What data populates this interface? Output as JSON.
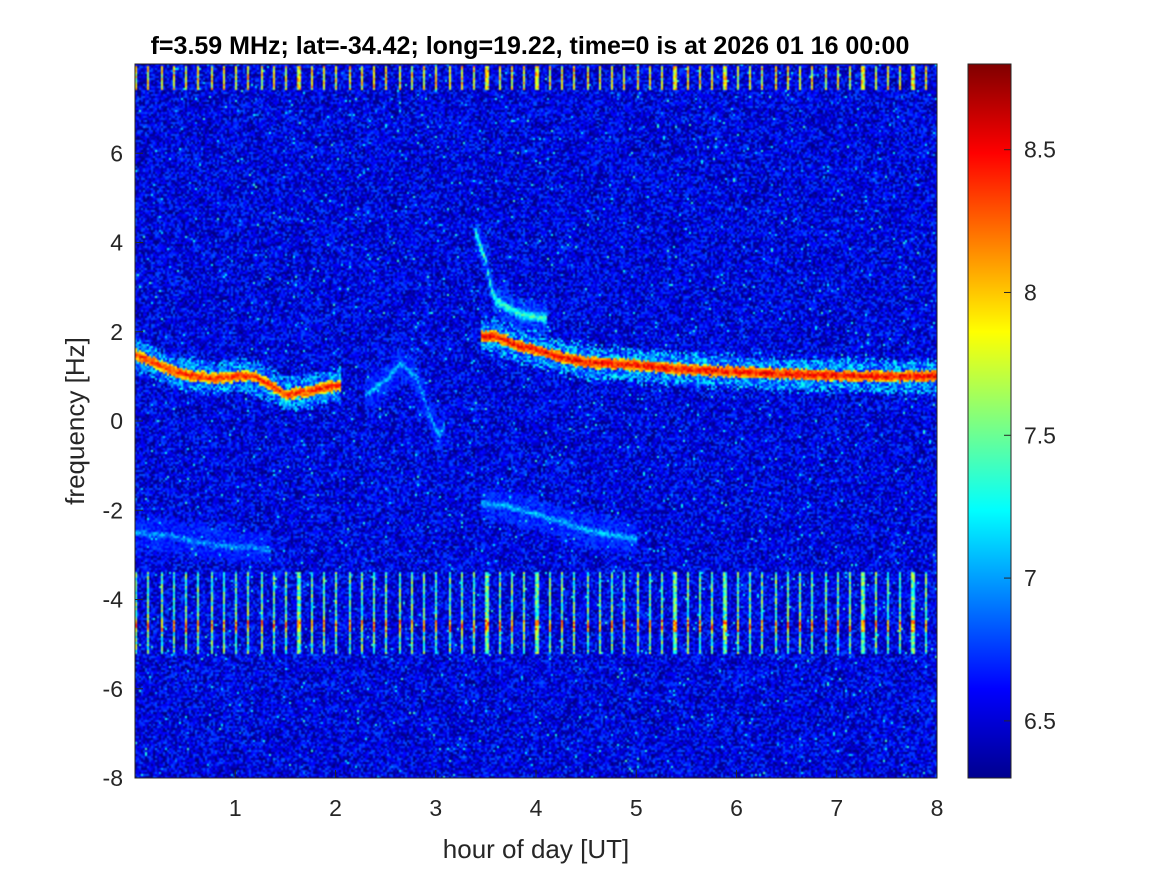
{
  "chart_data": {
    "type": "heatmap",
    "title": "f=3.59 MHz;  lat=-34.42; long=19.22, time=0 is at 2026 01 16 00:00",
    "xlabel": "hour of day [UT]",
    "ylabel": "frequency [Hz]",
    "xlim": [
      0,
      8
    ],
    "ylim": [
      -8,
      8
    ],
    "xticks": [
      1,
      2,
      3,
      4,
      5,
      6,
      7,
      8
    ],
    "yticks": [
      -8,
      -6,
      -4,
      -2,
      0,
      2,
      4,
      6
    ],
    "colormap": "jet",
    "colorbar": {
      "clim": [
        6.3,
        8.8
      ],
      "ticks": [
        6.5,
        7,
        7.5,
        8,
        8.5
      ]
    },
    "background_level": 6.55,
    "features": [
      {
        "label": "main Doppler trace",
        "points": [
          [
            0.0,
            1.5
          ],
          [
            0.2,
            1.3
          ],
          [
            0.4,
            1.1
          ],
          [
            0.6,
            1.0
          ],
          [
            0.8,
            0.95
          ],
          [
            1.0,
            1.0
          ],
          [
            1.2,
            1.0
          ],
          [
            1.35,
            0.8
          ],
          [
            1.5,
            0.6
          ],
          [
            1.7,
            0.65
          ],
          [
            1.9,
            0.75
          ],
          [
            2.05,
            0.8
          ]
        ],
        "level": 8.6
      },
      {
        "label": "faint dip trace",
        "points": [
          [
            2.3,
            0.6
          ],
          [
            2.5,
            0.9
          ],
          [
            2.65,
            1.3
          ],
          [
            2.8,
            1.0
          ],
          [
            2.9,
            0.4
          ],
          [
            3.0,
            -0.2
          ],
          [
            3.05,
            -0.3
          ],
          [
            3.1,
            0.0
          ]
        ],
        "level": 7.3
      },
      {
        "label": "post-jump trace",
        "points": [
          [
            3.45,
            1.9
          ],
          [
            3.6,
            1.9
          ],
          [
            3.8,
            1.7
          ],
          [
            4.0,
            1.6
          ],
          [
            4.2,
            1.45
          ],
          [
            4.4,
            1.35
          ],
          [
            4.6,
            1.3
          ],
          [
            5.0,
            1.25
          ],
          [
            5.5,
            1.15
          ],
          [
            6.0,
            1.1
          ],
          [
            6.5,
            1.05
          ],
          [
            7.0,
            1.02
          ],
          [
            7.5,
            1.0
          ],
          [
            8.0,
            1.0
          ]
        ],
        "level": 8.7
      },
      {
        "label": "upper branch",
        "points": [
          [
            3.4,
            4.2
          ],
          [
            3.5,
            3.6
          ],
          [
            3.55,
            3.0
          ],
          [
            3.6,
            2.7
          ],
          [
            3.75,
            2.5
          ],
          [
            3.9,
            2.35
          ],
          [
            4.1,
            2.3
          ]
        ],
        "level": 7.6
      },
      {
        "label": "negative trace early",
        "points": [
          [
            0.0,
            -2.5
          ],
          [
            0.3,
            -2.55
          ],
          [
            0.6,
            -2.7
          ],
          [
            0.9,
            -2.8
          ],
          [
            1.2,
            -2.85
          ],
          [
            1.35,
            -2.9
          ]
        ],
        "level": 7.2
      },
      {
        "label": "negative trace late",
        "points": [
          [
            3.45,
            -1.85
          ],
          [
            3.7,
            -1.9
          ],
          [
            4.0,
            -2.1
          ],
          [
            4.3,
            -2.3
          ],
          [
            4.6,
            -2.5
          ],
          [
            4.9,
            -2.6
          ],
          [
            5.0,
            -2.65
          ]
        ],
        "level": 7.3
      }
    ],
    "bands": [
      {
        "label": "upper striped band",
        "ymin": 7.4,
        "ymax": 7.95,
        "level": 8.2
      },
      {
        "label": "lower striped band",
        "ymin": -5.2,
        "ymax": -3.4,
        "level": 7.8
      },
      {
        "label": "lower line",
        "ymin": -4.75,
        "ymax": -4.45,
        "level": 8.4
      }
    ]
  }
}
